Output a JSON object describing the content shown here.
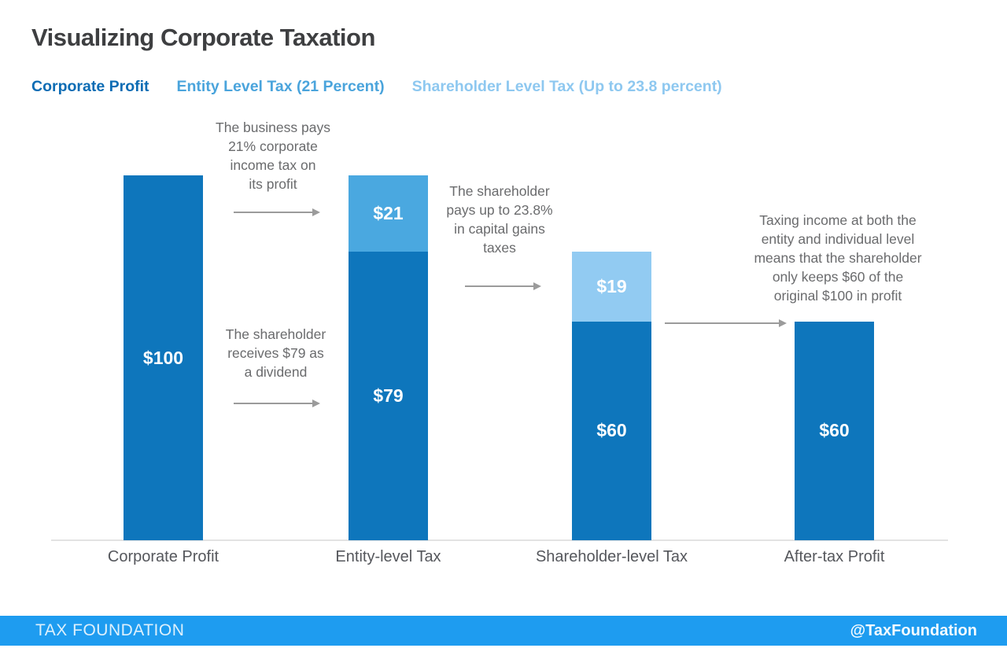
{
  "title": "Visualizing Corporate Taxation",
  "legend": {
    "items": [
      {
        "label": "Corporate Profit",
        "color": "#0c6cb4"
      },
      {
        "label": "Entity Level Tax (21 Percent)",
        "color": "#4aa4dc"
      },
      {
        "label": "Shareholder Level Tax (Up to 23.8 percent)",
        "color": "#8ec8f0"
      }
    ]
  },
  "chart_data": {
    "type": "bar",
    "stacked": true,
    "title": "Visualizing Corporate Taxation",
    "xlabel": "",
    "ylabel": "",
    "ylim": [
      0,
      100
    ],
    "grid": false,
    "legend_position": "top",
    "categories": [
      "Corporate Profit",
      "Entity-level Tax",
      "Shareholder-level Tax",
      "After-tax Profit"
    ],
    "series": [
      {
        "name": "Corporate Profit",
        "color": "#0e76bc",
        "values": [
          100,
          79,
          60,
          60
        ]
      },
      {
        "name": "Entity Level Tax (21 Percent)",
        "color": "#4aa8e0",
        "values": [
          0,
          21,
          0,
          0
        ]
      },
      {
        "name": "Shareholder Level Tax (Up to 23.8 percent)",
        "color": "#92cbf2",
        "values": [
          0,
          0,
          19,
          0
        ]
      }
    ],
    "bars": [
      {
        "category": "Corporate Profit",
        "segments": [
          {
            "series": "Corporate Profit",
            "value": 100,
            "label": "$100",
            "color": "#0e76bc"
          }
        ]
      },
      {
        "category": "Entity-level Tax",
        "segments": [
          {
            "series": "Entity Level Tax (21 Percent)",
            "value": 21,
            "label": "$21",
            "color": "#4aa8e0"
          },
          {
            "series": "Corporate Profit",
            "value": 79,
            "label": "$79",
            "color": "#0e76bc"
          }
        ]
      },
      {
        "category": "Shareholder-level Tax",
        "segments": [
          {
            "series": "Shareholder Level Tax (Up to 23.8 percent)",
            "value": 19,
            "label": "$19",
            "color": "#92cbf2"
          },
          {
            "series": "Corporate Profit",
            "value": 60,
            "label": "$60",
            "color": "#0e76bc"
          }
        ]
      },
      {
        "category": "After-tax Profit",
        "segments": [
          {
            "series": "Corporate Profit",
            "value": 60,
            "label": "$60",
            "color": "#0e76bc"
          }
        ]
      }
    ]
  },
  "annotations": [
    {
      "text": "The business pays\n21% corporate\nincome tax on\nits profit"
    },
    {
      "text": "The shareholder\nreceives $79 as\na dividend"
    },
    {
      "text": "The shareholder\npays up to 23.8%\nin capital gains\ntaxes"
    },
    {
      "text": "Taxing income at both the\nentity and individual level\nmeans that the shareholder\nonly keeps $60 of the\noriginal $100 in profit"
    }
  ],
  "footer": {
    "brand": "TAX FOUNDATION",
    "handle": "@TaxFoundation",
    "background": "#1e9cf0"
  }
}
